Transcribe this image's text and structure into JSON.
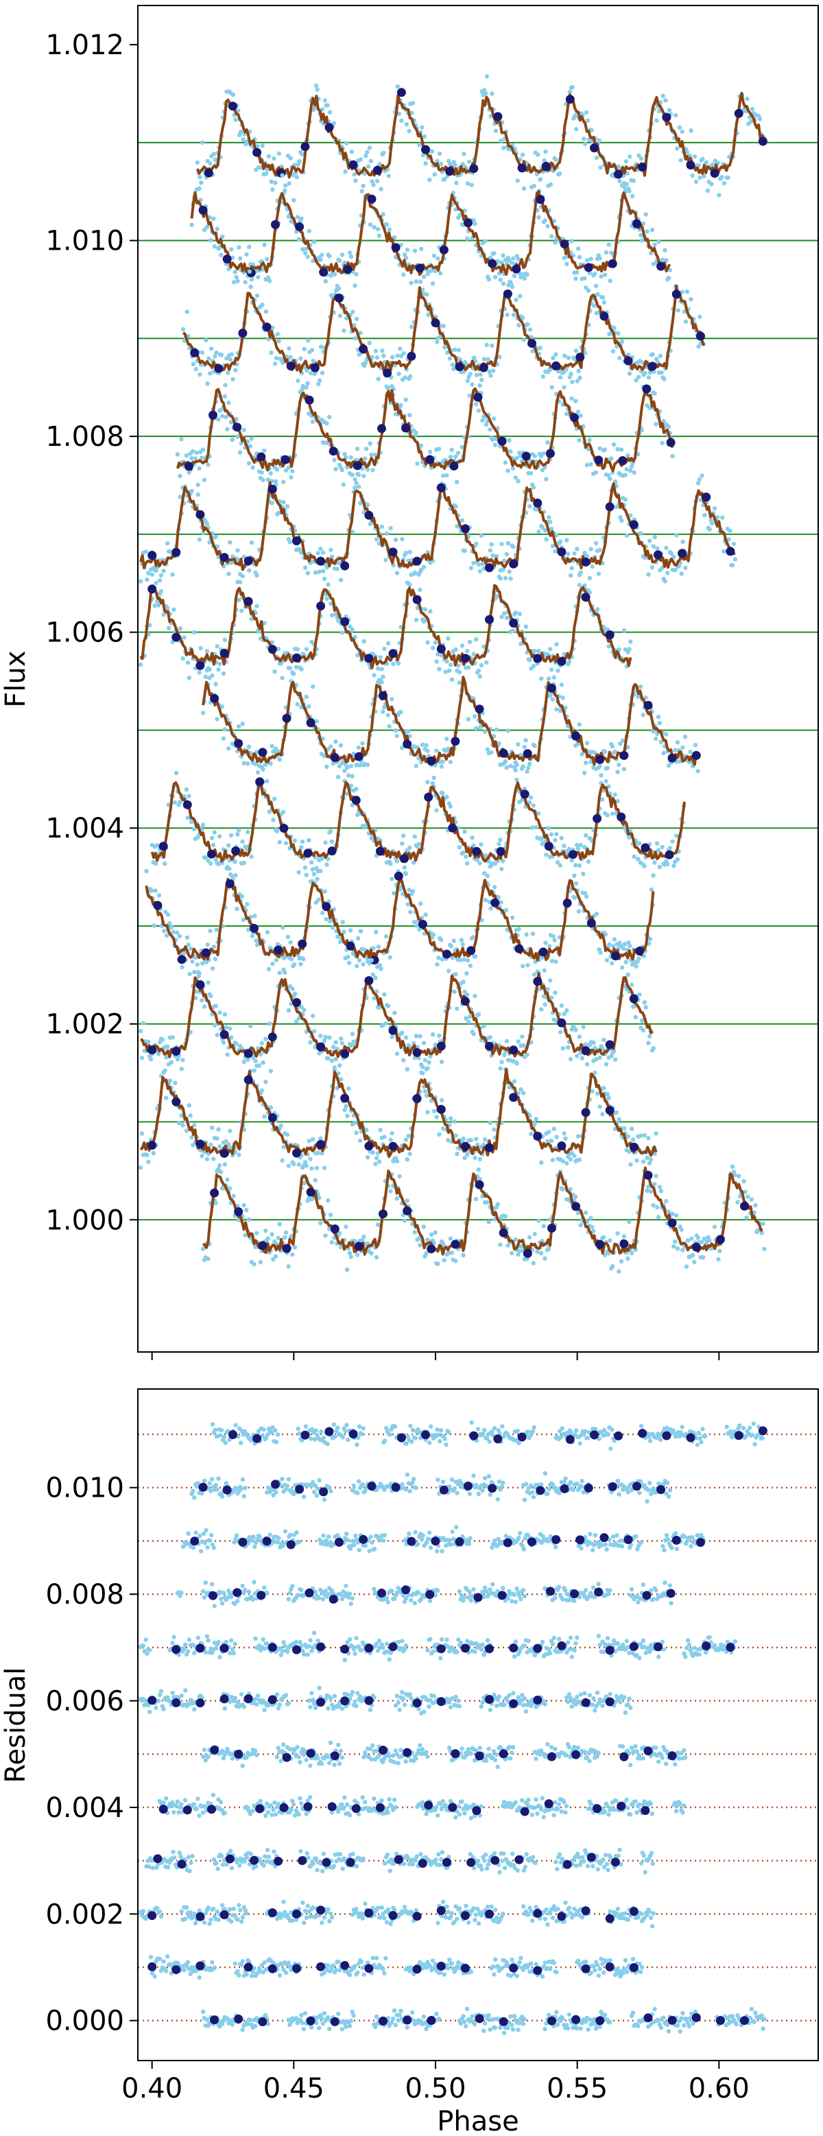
{
  "chart_data": [
    {
      "type": "scatter",
      "panel": "top",
      "ylabel": "Flux",
      "xlabel": "",
      "xlim": [
        0.395,
        0.635
      ],
      "ylim": [
        0.99865,
        1.0124
      ],
      "y_ticks": [
        1.0,
        1.002,
        1.004,
        1.006,
        1.008,
        1.01,
        1.012
      ],
      "y_tick_labels": [
        "1.000",
        "1.002",
        "1.004",
        "1.006",
        "1.008",
        "1.010",
        "1.012"
      ],
      "x_ticks": [
        0.4,
        0.45,
        0.5,
        0.55,
        0.6
      ],
      "x_tick_labels_shown": false,
      "grid": false,
      "description_of_series": "12 vertically offset light-curve strips; each offset is a horizontal reference line",
      "strips": [
        {
          "offset": 1.011,
          "x_start": 0.416,
          "x_end": 0.616
        },
        {
          "offset": 1.01,
          "x_start": 0.414,
          "x_end": 0.583
        },
        {
          "offset": 1.009,
          "x_start": 0.411,
          "x_end": 0.595
        },
        {
          "offset": 1.008,
          "x_start": 0.409,
          "x_end": 0.584
        },
        {
          "offset": 1.007,
          "x_start": 0.396,
          "x_end": 0.606
        },
        {
          "offset": 1.006,
          "x_start": 0.396,
          "x_end": 0.569
        },
        {
          "offset": 1.005,
          "x_start": 0.418,
          "x_end": 0.593
        },
        {
          "offset": 1.004,
          "x_start": 0.4,
          "x_end": 0.588
        },
        {
          "offset": 1.003,
          "x_start": 0.398,
          "x_end": 0.577
        },
        {
          "offset": 1.002,
          "x_start": 0.396,
          "x_end": 0.577
        },
        {
          "offset": 1.001,
          "x_start": 0.396,
          "x_end": 0.578
        },
        {
          "offset": 1.0,
          "x_start": 0.418,
          "x_end": 0.616
        }
      ],
      "pulse_period": 0.0302,
      "pulse_amplitude": 0.00048,
      "series": [
        {
          "role": "observations",
          "color": "#87ceeb",
          "marker": "small dot"
        },
        {
          "role": "binned observations",
          "color": "#191970",
          "marker": "large dot"
        },
        {
          "role": "model",
          "color": "#8b4513",
          "style": "line"
        },
        {
          "role": "baseline",
          "color": "#228b22",
          "style": "line"
        }
      ]
    },
    {
      "type": "scatter",
      "panel": "bottom",
      "ylabel": "Residual",
      "xlabel": "Phase",
      "xlim": [
        0.395,
        0.635
      ],
      "ylim": [
        -0.00075,
        0.01185
      ],
      "y_ticks": [
        0.0,
        0.002,
        0.004,
        0.006,
        0.008,
        0.01
      ],
      "y_tick_labels": [
        "0.000",
        "0.002",
        "0.004",
        "0.006",
        "0.008",
        "0.010"
      ],
      "x_ticks": [
        0.4,
        0.45,
        0.5,
        0.55,
        0.6
      ],
      "x_tick_labels": [
        "0.40",
        "0.45",
        "0.50",
        "0.55",
        "0.60"
      ],
      "grid": false,
      "strip_offsets": [
        0.011,
        0.01,
        0.009,
        0.008,
        0.007,
        0.006,
        0.005,
        0.004,
        0.003,
        0.002,
        0.001,
        0.0
      ],
      "residual_scatter": 0.00012,
      "series": [
        {
          "role": "residuals",
          "color": "#87ceeb",
          "marker": "small dot"
        },
        {
          "role": "binned residuals",
          "color": "#191970",
          "marker": "large dot"
        },
        {
          "role": "zero level",
          "color": "#b5542b",
          "style": "dotted line"
        }
      ]
    }
  ],
  "colors": {
    "obs": "#87ceeb",
    "binned": "#191970",
    "model": "#8b4513",
    "baseline": "#228b22",
    "residual_line": "#b5542b"
  }
}
